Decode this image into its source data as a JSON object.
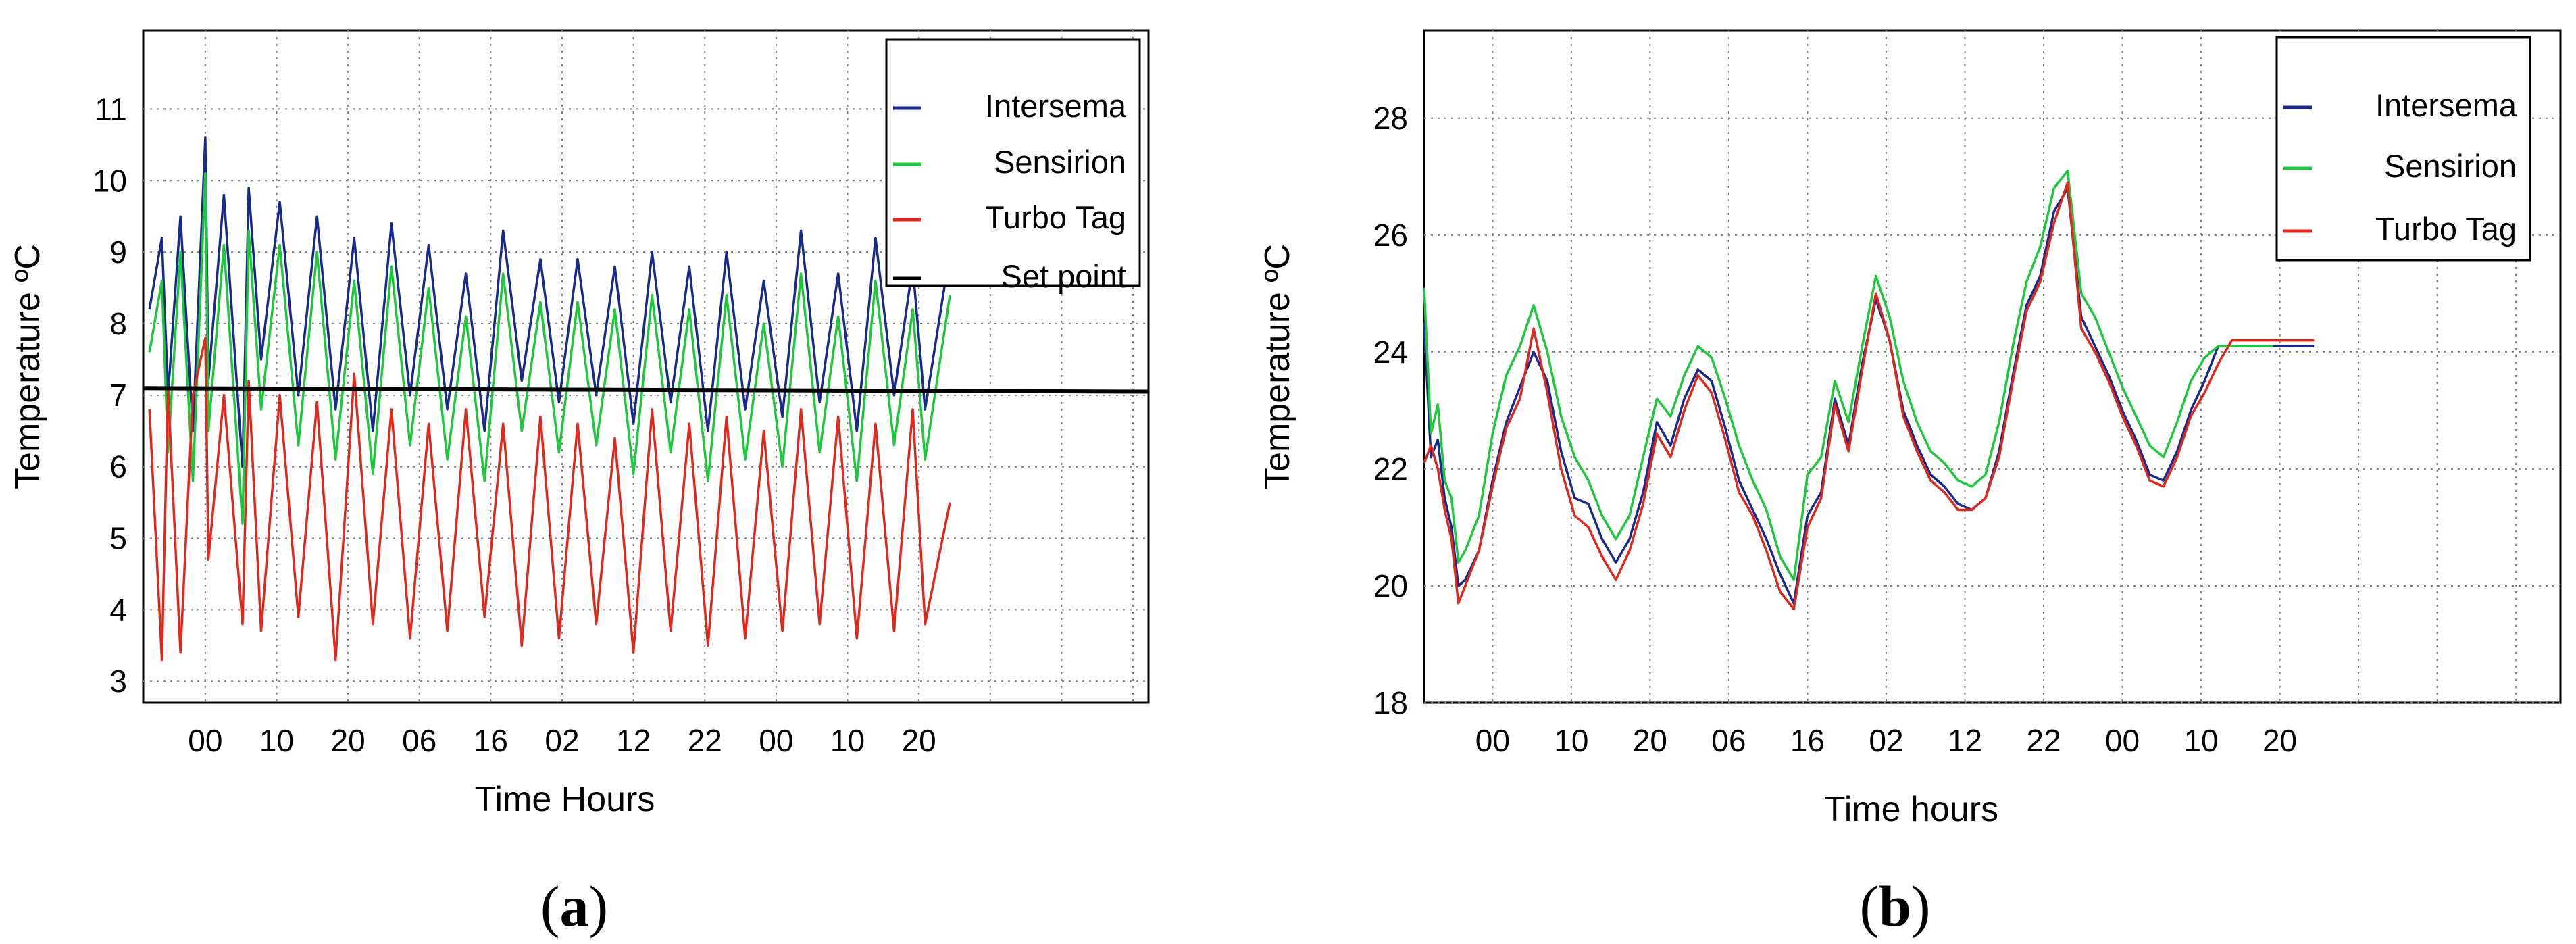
{
  "chart_data": [
    {
      "type": "line",
      "panel_label": "a",
      "xlabel": "Time Hours",
      "ylabel": "Temperature ºC",
      "x_tick_labels": [
        "00",
        "10",
        "20",
        "06",
        "16",
        "02",
        "12",
        "22",
        "00",
        "10",
        "20"
      ],
      "y_ticks": [
        3,
        4,
        5,
        6,
        7,
        8,
        9,
        10,
        11
      ],
      "ylim": [
        2.7,
        12.1
      ],
      "grid": true,
      "legend_position": "top-right",
      "x_unit": "hours since first sample",
      "series": [
        {
          "name": "Intersema",
          "color": "#1a2a8c",
          "x": [
            -3,
            -1,
            0,
            2,
            4,
            6,
            6.5,
            9,
            12,
            13,
            15,
            18,
            21,
            24,
            27,
            30,
            33,
            36,
            39,
            42,
            45,
            48,
            51,
            54,
            57,
            60,
            63,
            66,
            69,
            72,
            75,
            78,
            81,
            84,
            87,
            90,
            93,
            96,
            99,
            102,
            105,
            108,
            111,
            114,
            117,
            120,
            122,
            126
          ],
          "y": [
            8.2,
            9.2,
            7.0,
            9.5,
            6.5,
            10.6,
            7.2,
            9.8,
            6.0,
            9.9,
            7.5,
            9.7,
            7.0,
            9.5,
            6.8,
            9.2,
            6.5,
            9.4,
            7.0,
            9.1,
            6.8,
            8.7,
            6.5,
            9.3,
            7.2,
            8.9,
            6.9,
            8.9,
            7.0,
            8.8,
            6.6,
            9.0,
            6.9,
            8.8,
            6.5,
            9.0,
            6.8,
            8.6,
            6.7,
            9.3,
            6.9,
            8.7,
            6.5,
            9.2,
            7.0,
            8.8,
            6.8,
            9.0
          ]
        },
        {
          "name": "Sensirion",
          "color": "#1ec83c",
          "x": [
            -3,
            -1,
            0,
            2,
            4,
            6,
            6.5,
            9,
            12,
            13,
            15,
            18,
            21,
            24,
            27,
            30,
            33,
            36,
            39,
            42,
            45,
            48,
            51,
            54,
            57,
            60,
            63,
            66,
            69,
            72,
            75,
            78,
            81,
            84,
            87,
            90,
            93,
            96,
            99,
            102,
            105,
            108,
            111,
            114,
            117,
            120,
            122,
            126
          ],
          "y": [
            7.6,
            8.6,
            6.2,
            9.0,
            5.8,
            10.1,
            6.5,
            9.1,
            5.2,
            9.3,
            6.8,
            9.1,
            6.3,
            9.0,
            6.1,
            8.6,
            5.9,
            8.8,
            6.3,
            8.5,
            6.1,
            8.1,
            5.8,
            8.7,
            6.5,
            8.3,
            6.2,
            8.3,
            6.3,
            8.2,
            5.9,
            8.4,
            6.2,
            8.2,
            5.8,
            8.4,
            6.1,
            8.0,
            6.0,
            8.7,
            6.2,
            8.1,
            5.8,
            8.6,
            6.3,
            8.2,
            6.1,
            8.4
          ]
        },
        {
          "name": "Turbo Tag",
          "color": "#e0281c",
          "x": [
            -3,
            -1,
            0,
            2,
            4,
            6,
            6.5,
            9,
            12,
            13,
            15,
            18,
            21,
            24,
            27,
            30,
            33,
            36,
            39,
            42,
            45,
            48,
            51,
            54,
            57,
            60,
            63,
            66,
            69,
            72,
            75,
            78,
            81,
            84,
            87,
            90,
            93,
            96,
            99,
            102,
            105,
            108,
            111,
            114,
            117,
            120,
            122,
            126
          ],
          "y": [
            6.8,
            3.3,
            7.1,
            3.4,
            7.0,
            7.8,
            4.7,
            7.0,
            3.8,
            7.2,
            3.7,
            7.0,
            3.9,
            6.9,
            3.3,
            7.3,
            3.8,
            6.8,
            3.6,
            6.6,
            3.7,
            6.8,
            3.9,
            6.6,
            3.5,
            6.7,
            3.6,
            6.6,
            3.8,
            6.4,
            3.4,
            6.8,
            3.7,
            6.6,
            3.5,
            6.7,
            3.6,
            6.5,
            3.7,
            6.8,
            3.8,
            6.7,
            3.6,
            6.6,
            3.7,
            6.8,
            3.8,
            5.5
          ]
        },
        {
          "name": "Set point",
          "color": "#000000",
          "x": [
            -4,
            158
          ],
          "y": [
            7.1,
            7.05
          ]
        }
      ]
    },
    {
      "type": "line",
      "panel_label": "b",
      "xlabel": "Time hours",
      "ylabel": "Temperature ºC",
      "x_tick_labels": [
        "00",
        "10",
        "20",
        "06",
        "16",
        "02",
        "12",
        "22",
        "00",
        "10",
        "20"
      ],
      "y_ticks": [
        18,
        20,
        22,
        24,
        26,
        28
      ],
      "ylim": [
        18,
        29.5
      ],
      "grid": true,
      "legend_position": "top-right",
      "x_unit": "hours since first sample",
      "series": [
        {
          "name": "Intersema",
          "color": "#1a2a8c",
          "x": [
            -4,
            -3,
            -2,
            -1,
            0,
            1,
            2,
            4,
            6,
            8,
            10,
            12,
            14,
            16,
            18,
            20,
            22,
            24,
            26,
            28,
            30,
            32,
            34,
            36,
            38,
            40,
            42,
            44,
            46,
            48,
            50,
            52,
            54,
            56,
            58,
            60,
            62,
            64,
            66,
            68,
            70,
            72,
            74,
            76,
            78,
            80,
            82,
            84,
            86,
            88,
            90,
            92,
            94,
            96,
            98,
            100,
            102,
            104,
            106,
            108,
            110,
            112,
            114,
            116,
            118,
            120,
            122,
            124,
            126
          ],
          "y": [
            24.5,
            22.2,
            22.5,
            21.5,
            21.0,
            20.0,
            20.1,
            20.6,
            21.8,
            22.8,
            23.4,
            24.0,
            23.5,
            22.3,
            21.5,
            21.4,
            20.8,
            20.4,
            20.8,
            21.6,
            22.8,
            22.4,
            23.2,
            23.7,
            23.5,
            22.7,
            21.8,
            21.3,
            20.8,
            20.2,
            19.7,
            21.2,
            21.6,
            23.2,
            22.4,
            23.8,
            24.9,
            24.2,
            23.0,
            22.4,
            21.9,
            21.7,
            21.4,
            21.3,
            21.5,
            22.3,
            23.6,
            24.8,
            25.3,
            26.4,
            26.8,
            24.6,
            24.1,
            23.6,
            23.0,
            22.5,
            21.9,
            21.8,
            22.3,
            23.0,
            23.5,
            24.1,
            24.1,
            24.1,
            24.1,
            24.1,
            24.1,
            24.1,
            24.1
          ]
        },
        {
          "name": "Sensirion",
          "color": "#1ec83c",
          "x": [
            -4,
            -3,
            -2,
            -1,
            0,
            1,
            2,
            4,
            6,
            8,
            10,
            12,
            14,
            16,
            18,
            20,
            22,
            24,
            26,
            28,
            30,
            32,
            34,
            36,
            38,
            40,
            42,
            44,
            46,
            48,
            50,
            52,
            54,
            56,
            58,
            60,
            62,
            64,
            66,
            68,
            70,
            72,
            74,
            76,
            78,
            80,
            82,
            84,
            86,
            88,
            90,
            92,
            94,
            96,
            98,
            100,
            102,
            104,
            106,
            108,
            110,
            112,
            114,
            116,
            118,
            120
          ],
          "y": [
            25.1,
            22.6,
            23.1,
            21.8,
            21.5,
            20.4,
            20.6,
            21.2,
            22.6,
            23.6,
            24.1,
            24.8,
            24.0,
            22.9,
            22.2,
            21.8,
            21.2,
            20.8,
            21.2,
            22.2,
            23.2,
            22.9,
            23.6,
            24.1,
            23.9,
            23.2,
            22.4,
            21.8,
            21.3,
            20.5,
            20.1,
            21.9,
            22.2,
            23.5,
            22.8,
            24.1,
            25.3,
            24.6,
            23.5,
            22.8,
            22.3,
            22.1,
            21.8,
            21.7,
            21.9,
            22.8,
            24.1,
            25.2,
            25.8,
            26.8,
            27.1,
            25.0,
            24.6,
            24.0,
            23.4,
            22.9,
            22.4,
            22.2,
            22.8,
            23.5,
            23.9,
            24.1,
            24.1,
            24.1,
            24.1,
            24.1
          ]
        },
        {
          "name": "Turbo Tag",
          "color": "#e0281c",
          "x": [
            -4,
            -3,
            -2,
            -1,
            0,
            1,
            2,
            4,
            6,
            8,
            10,
            12,
            14,
            16,
            18,
            20,
            22,
            24,
            26,
            28,
            30,
            32,
            34,
            36,
            38,
            40,
            42,
            44,
            46,
            48,
            50,
            52,
            54,
            56,
            58,
            60,
            62,
            64,
            66,
            68,
            70,
            72,
            74,
            76,
            78,
            80,
            82,
            84,
            86,
            88,
            90,
            92,
            94,
            96,
            98,
            100,
            102,
            104,
            106,
            108,
            110,
            112,
            114,
            116,
            118,
            120,
            122,
            124,
            126
          ],
          "y": [
            22.1,
            22.4,
            22.0,
            21.3,
            20.8,
            19.7,
            20.0,
            20.6,
            21.7,
            22.7,
            23.2,
            24.4,
            23.3,
            22.0,
            21.2,
            21.0,
            20.5,
            20.1,
            20.6,
            21.4,
            22.6,
            22.2,
            23.0,
            23.6,
            23.3,
            22.5,
            21.6,
            21.2,
            20.6,
            19.9,
            19.6,
            21.0,
            21.5,
            23.1,
            22.3,
            23.7,
            25.0,
            24.2,
            22.9,
            22.3,
            21.8,
            21.6,
            21.3,
            21.3,
            21.5,
            22.2,
            23.5,
            24.7,
            25.2,
            26.2,
            26.9,
            24.4,
            24.0,
            23.5,
            22.9,
            22.4,
            21.8,
            21.7,
            22.2,
            22.9,
            23.3,
            23.8,
            24.2,
            24.2,
            24.2,
            24.2,
            24.2,
            24.2,
            24.2
          ]
        }
      ]
    }
  ]
}
